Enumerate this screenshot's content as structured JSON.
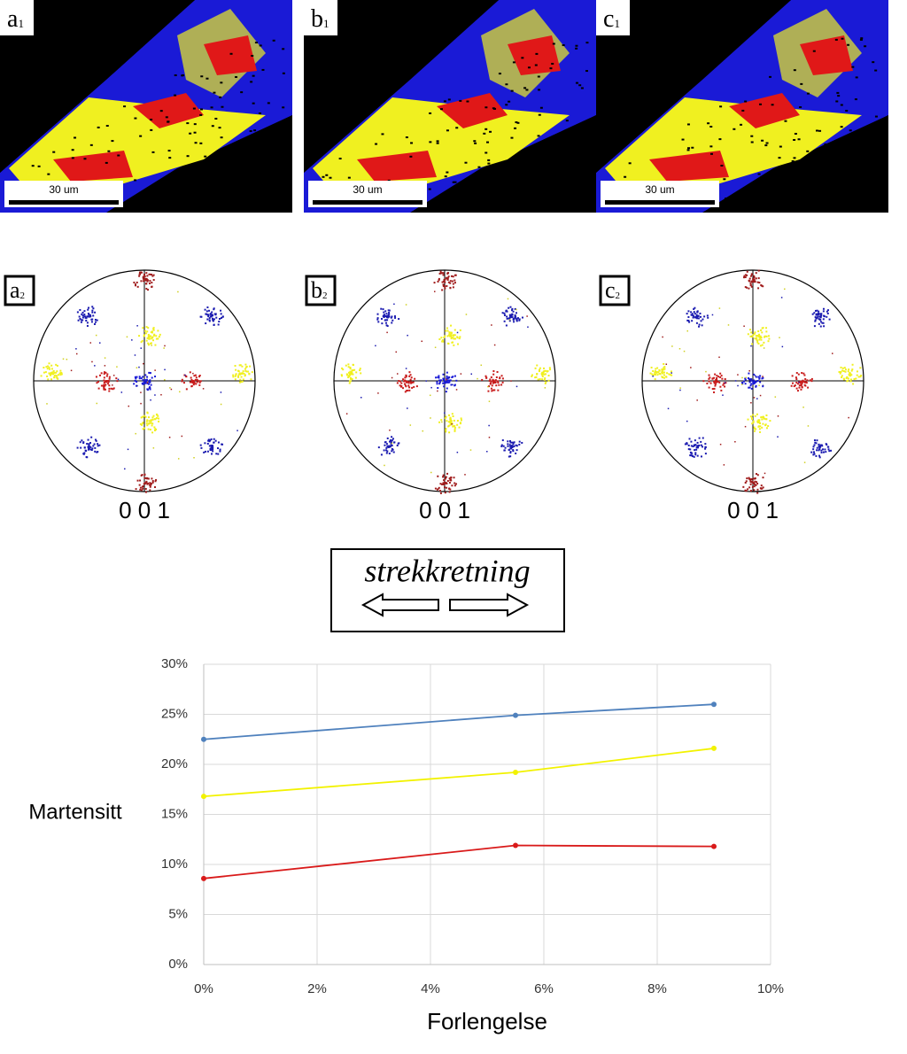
{
  "maps": [
    {
      "label": "a",
      "sub": "1",
      "scale_bar": "30 um"
    },
    {
      "label": "b",
      "sub": "1",
      "scale_bar": "30 um"
    },
    {
      "label": "c",
      "sub": "1",
      "scale_bar": "30 um"
    }
  ],
  "pole_figures": [
    {
      "label": "a",
      "sub": "2",
      "caption": "0 0 1"
    },
    {
      "label": "b",
      "sub": "2",
      "caption": "0 0 1"
    },
    {
      "label": "c",
      "sub": "2",
      "caption": "0 0 1"
    }
  ],
  "direction_label": "strekkretning",
  "chart_data": {
    "type": "line",
    "x_label": "Forlengelse",
    "y_label": "Martensitt",
    "x": [
      0,
      5.5,
      9
    ],
    "series": [
      {
        "color": "#4f81bd",
        "values": [
          22.5,
          24.9,
          26.0
        ]
      },
      {
        "color": "#f2f200",
        "values": [
          16.8,
          19.2,
          21.6
        ]
      },
      {
        "color": "#d91a1a",
        "values": [
          8.6,
          11.9,
          11.8
        ]
      }
    ],
    "xlim": [
      0,
      10
    ],
    "xticks": [
      {
        "value": 0,
        "label": "0%"
      },
      {
        "value": 2,
        "label": "2%"
      },
      {
        "value": 4,
        "label": "4%"
      },
      {
        "value": 6,
        "label": "6%"
      },
      {
        "value": 8,
        "label": "8%"
      },
      {
        "value": 10,
        "label": "10%"
      }
    ],
    "ylim": [
      0,
      30
    ],
    "yticks": [
      {
        "value": 0,
        "label": "0%"
      },
      {
        "value": 5,
        "label": "5%"
      },
      {
        "value": 10,
        "label": "10%"
      },
      {
        "value": 15,
        "label": "15%"
      },
      {
        "value": 20,
        "label": "20%"
      },
      {
        "value": 25,
        "label": "25%"
      },
      {
        "value": 30,
        "label": "30%"
      }
    ],
    "grid": true
  }
}
